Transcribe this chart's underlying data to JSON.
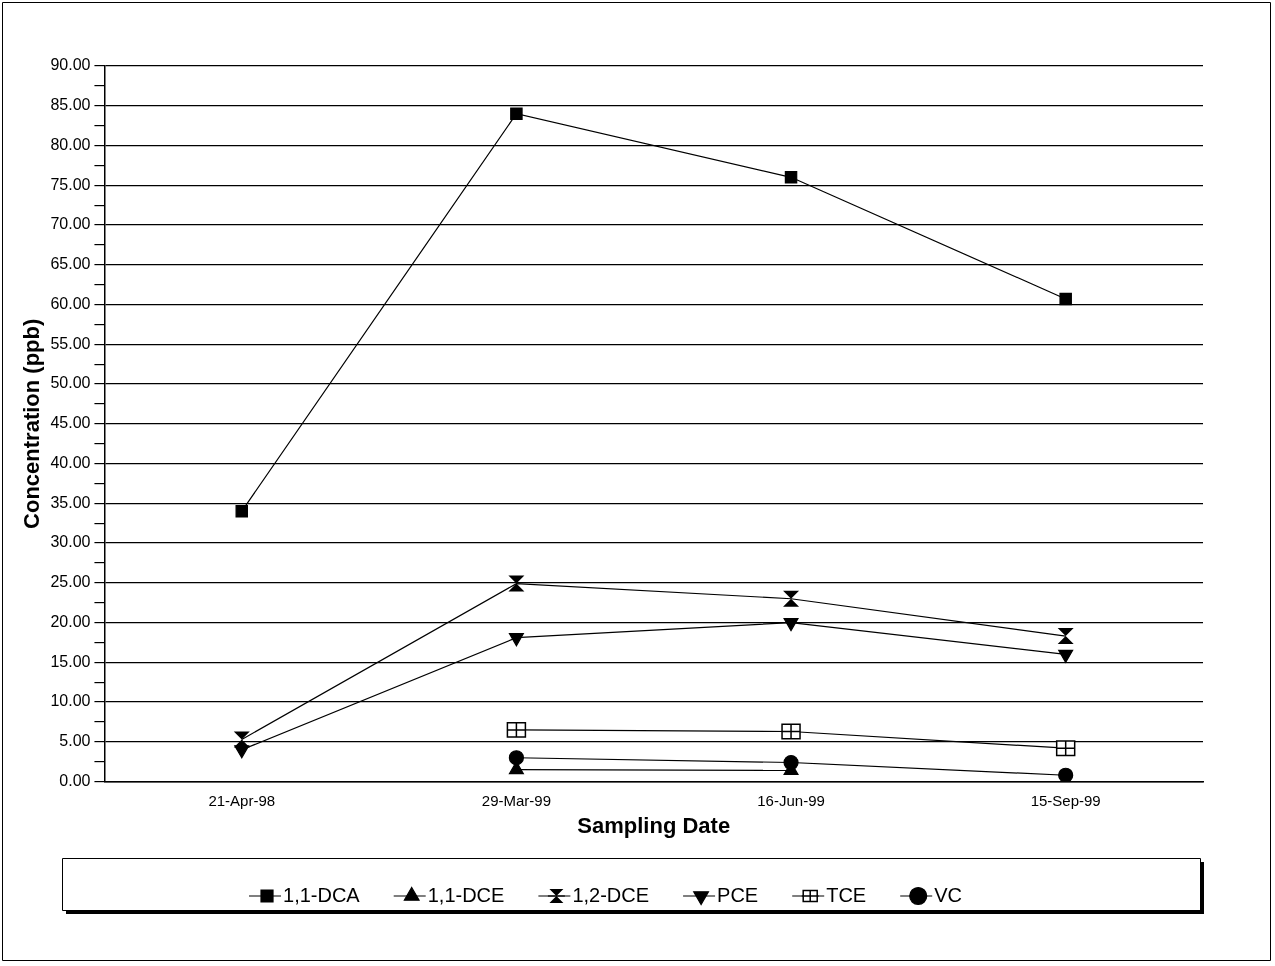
{
  "chart_data": {
    "type": "line",
    "xlabel": "Sampling Date",
    "ylabel": "Concentration (ppb)",
    "categories": [
      "21-Apr-98",
      "29-Mar-99",
      "16-Jun-99",
      "15-Sep-99"
    ],
    "series": [
      {
        "name": "1,1-DCA",
        "color": "#000000",
        "marker": "square",
        "values": [
          34.0,
          84.0,
          76.0,
          60.7
        ]
      },
      {
        "name": "1,1-DCE",
        "color": "#000000",
        "marker": "triangle",
        "values": [
          null,
          1.5,
          1.4,
          null
        ]
      },
      {
        "name": "1,2-DCE",
        "color": "#000000",
        "marker": "cross",
        "values": [
          5.3,
          24.9,
          23.0,
          18.3
        ]
      },
      {
        "name": "PCE",
        "color": "#000000",
        "marker": "triangle-down",
        "values": [
          4.0,
          18.1,
          20.0,
          16.0
        ]
      },
      {
        "name": "TCE",
        "color": "#000000",
        "marker": "square-cross",
        "values": [
          null,
          6.5,
          6.3,
          4.2
        ]
      },
      {
        "name": "VC",
        "color": "#000000",
        "marker": "circle",
        "values": [
          null,
          3.0,
          2.4,
          0.8
        ]
      }
    ],
    "ylim": [
      0,
      90
    ],
    "yticks": [
      {
        "value": 0,
        "label": "0.00"
      },
      {
        "value": 2.5,
        "label": null
      },
      {
        "value": 5,
        "label": "5.00"
      },
      {
        "value": 7.5,
        "label": null
      },
      {
        "value": 10,
        "label": "10.00"
      },
      {
        "value": 12.5,
        "label": null
      },
      {
        "value": 15,
        "label": "15.00"
      },
      {
        "value": 17.5,
        "label": null
      },
      {
        "value": 20,
        "label": "20.00"
      },
      {
        "value": 22.5,
        "label": null
      },
      {
        "value": 25,
        "label": "25.00"
      },
      {
        "value": 27.5,
        "label": null
      },
      {
        "value": 30,
        "label": "30.00"
      },
      {
        "value": 32.5,
        "label": null
      },
      {
        "value": 35,
        "label": "35.00"
      },
      {
        "value": 37.5,
        "label": null
      },
      {
        "value": 40,
        "label": "40.00"
      },
      {
        "value": 42.5,
        "label": null
      },
      {
        "value": 45,
        "label": "45.00"
      },
      {
        "value": 47.5,
        "label": null
      },
      {
        "value": 50,
        "label": "50.00"
      },
      {
        "value": 52.5,
        "label": null
      },
      {
        "value": 55,
        "label": "55.00"
      },
      {
        "value": 57.5,
        "label": null
      },
      {
        "value": 60,
        "label": "60.00"
      },
      {
        "value": 62.5,
        "label": null
      },
      {
        "value": 65,
        "label": "65.00"
      },
      {
        "value": 67.5,
        "label": null
      },
      {
        "value": 70,
        "label": "70.00"
      },
      {
        "value": 72.5,
        "label": null
      },
      {
        "value": 75,
        "label": "75.00"
      },
      {
        "value": 77.5,
        "label": null
      },
      {
        "value": 80,
        "label": "80.00"
      },
      {
        "value": 82.5,
        "label": null
      },
      {
        "value": 85,
        "label": "85.00"
      },
      {
        "value": 87.5,
        "label": null
      },
      {
        "value": 90,
        "label": "90.00"
      }
    ],
    "grid": "y",
    "legend": "bottom",
    "line_style": "solid"
  }
}
